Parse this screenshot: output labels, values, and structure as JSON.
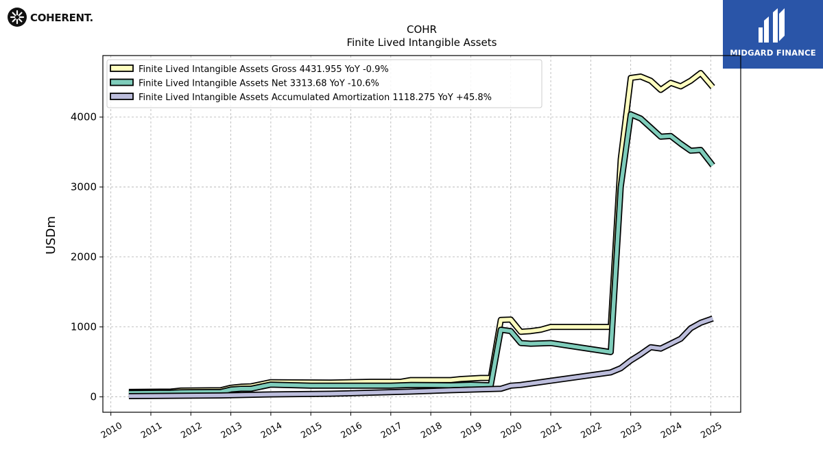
{
  "header": {
    "company_logo_text": "COHERENT.",
    "brand_name": "MIDGARD FINANCE"
  },
  "colors": {
    "gross": "#ffffbf",
    "net": "#7fcdbb",
    "amortization": "#bcbddc",
    "outline": "#000000",
    "brand_bg": "#2a55a8"
  },
  "chart_data": {
    "type": "line",
    "title": "COHR",
    "subtitle": "Finite Lived Intangible Assets",
    "ylabel": "USDm",
    "xlabel": "",
    "xlim": [
      2009.8,
      2025.75
    ],
    "ylim": [
      -220,
      4880
    ],
    "yticks": [
      0,
      1000,
      2000,
      3000,
      4000
    ],
    "xticks": [
      2010,
      2011,
      2012,
      2013,
      2014,
      2015,
      2016,
      2017,
      2018,
      2019,
      2020,
      2021,
      2022,
      2023,
      2024,
      2025
    ],
    "grid": true,
    "legend_position": "top-left",
    "series": [
      {
        "name": "Finite Lived Intangible Assets Gross  4431.955 YoY -0.9%",
        "color": "#ffffbf",
        "x": [
          2010.45,
          2011.5,
          2011.75,
          2012.75,
          2013.0,
          2013.25,
          2013.5,
          2014.0,
          2015.5,
          2016.5,
          2017.25,
          2017.5,
          2018.5,
          2018.75,
          2019.25,
          2019.5,
          2019.75,
          2020.0,
          2020.25,
          2020.5,
          2020.75,
          2021.0,
          2022.5,
          2022.75,
          2023.0,
          2023.25,
          2023.5,
          2023.75,
          2024.0,
          2024.25,
          2024.5,
          2024.75,
          2025.05
        ],
        "y": [
          70,
          75,
          90,
          95,
          130,
          145,
          150,
          210,
          205,
          215,
          215,
          240,
          240,
          255,
          270,
          270,
          1100,
          1105,
          930,
          940,
          960,
          1000,
          1000,
          3400,
          4560,
          4580,
          4520,
          4390,
          4490,
          4440,
          4520,
          4630,
          4430
        ]
      },
      {
        "name": "Finite Lived Intangible Assets Net  3313.68 YoY -10.6%",
        "color": "#7fcdbb",
        "x": [
          2010.45,
          2011.5,
          2011.75,
          2012.75,
          2013.0,
          2013.25,
          2013.5,
          2014.0,
          2015.0,
          2016.0,
          2017.0,
          2017.5,
          2018.5,
          2019.0,
          2019.5,
          2019.75,
          2020.0,
          2020.25,
          2020.5,
          2021.0,
          2022.5,
          2022.75,
          2023.0,
          2023.25,
          2023.5,
          2023.75,
          2024.0,
          2024.25,
          2024.5,
          2024.75,
          2025.05
        ],
        "y": [
          55,
          60,
          65,
          70,
          105,
          115,
          115,
          175,
          160,
          160,
          160,
          170,
          165,
          175,
          165,
          960,
          940,
          770,
          760,
          770,
          640,
          3000,
          4040,
          3980,
          3850,
          3720,
          3730,
          3620,
          3520,
          3530,
          3310
        ]
      },
      {
        "name": "Finite Lived Intangible Assets Accumulated Amortization  1118.275 YoY +45.8%",
        "color": "#bcbddc",
        "x": [
          2010.45,
          2012.75,
          2014.0,
          2015.5,
          2016.5,
          2017.5,
          2018.5,
          2019.75,
          2020.0,
          2020.25,
          2020.5,
          2021.0,
          2022.5,
          2022.75,
          2023.0,
          2023.25,
          2023.5,
          2023.75,
          2024.0,
          2024.25,
          2024.5,
          2024.75,
          2025.05
        ],
        "y": [
          10,
          20,
          35,
          45,
          60,
          75,
          95,
          115,
          160,
          170,
          190,
          230,
          350,
          410,
          520,
          610,
          710,
          690,
          760,
          830,
          980,
          1060,
          1120
        ]
      }
    ]
  }
}
